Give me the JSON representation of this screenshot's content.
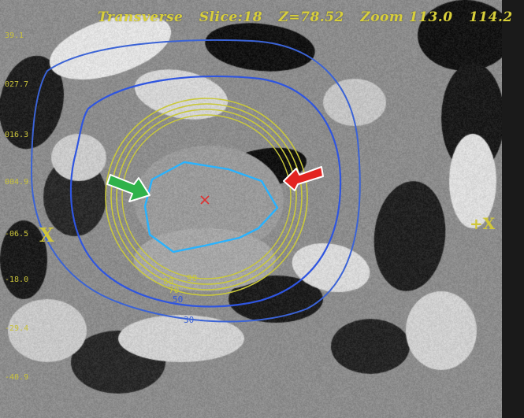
{
  "header": {
    "view": "Transverse",
    "slice": "Slice:18",
    "z": "Z=78.52",
    "zoom": "Zoom 113.0",
    "zoom2": "114.2"
  },
  "ruler": {
    "ticks": [
      "39.1",
      "027.7",
      "016.3",
      "004.9",
      "-06.5",
      "-18.0",
      "-29.4",
      "-40.9"
    ]
  },
  "orientation": {
    "left": "X",
    "right": "+X"
  },
  "isodose": {
    "labels": [
      "80",
      "90",
      "70",
      "50",
      "30"
    ],
    "colors": {
      "yellow": "#c9c83a",
      "blue_50": "#2f55e0",
      "blue_30": "#3b63d6",
      "target": "#29b3ff"
    }
  },
  "markers": {
    "isocenter_color": "#e03030",
    "arrow_green": "#2fb24a",
    "arrow_red": "#e32420"
  }
}
